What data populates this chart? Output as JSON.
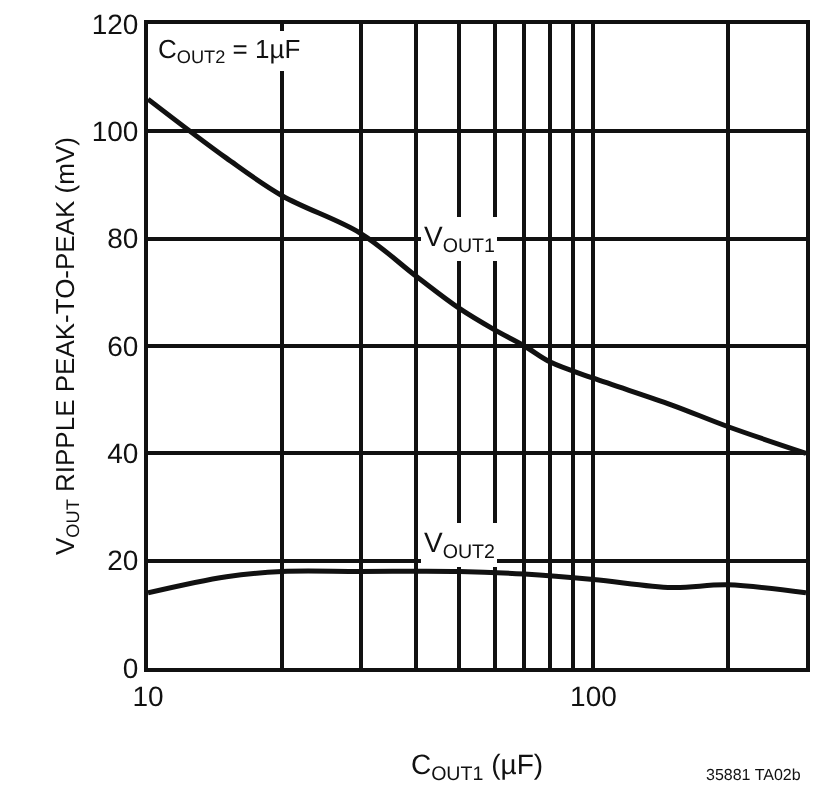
{
  "chart_data": {
    "type": "line",
    "xlabel": "C$_{OUT1}$ (µF)",
    "ylabel": "V$_{OUT}$ RIPPLE PEAK-TO-PEAK (mV)",
    "log": "x",
    "grid": true,
    "legend": false,
    "line_style": "solid",
    "marker": "none",
    "xlim": [
      10,
      300
    ],
    "xticks": [
      10,
      {
        "value": 20,
        "label": null
      },
      {
        "value": 30,
        "label": null
      },
      {
        "value": 40,
        "label": null
      },
      {
        "value": 50,
        "label": null
      },
      {
        "value": 60,
        "label": null
      },
      {
        "value": 70,
        "label": null
      },
      {
        "value": 80,
        "label": null
      },
      {
        "value": 90,
        "label": null
      },
      100,
      {
        "value": 200,
        "label": null
      }
    ],
    "ylim": [
      0,
      120
    ],
    "yticks": [
      0,
      20,
      40,
      60,
      80,
      100,
      120
    ],
    "series": [
      {
        "color": "#111111",
        "x": [
          10,
          15,
          20,
          30,
          40,
          50,
          60,
          70,
          80,
          100,
          150,
          200,
          300
        ],
        "values": [
          106,
          95,
          88,
          81,
          73,
          67,
          63,
          60,
          57,
          54,
          49,
          45,
          40
        ]
      },
      {
        "color": "#111111",
        "x": [
          10,
          15,
          20,
          30,
          50,
          70,
          100,
          150,
          200,
          300
        ],
        "values": [
          14,
          17,
          18,
          18,
          18,
          17.5,
          16.5,
          15,
          15.5,
          14
        ]
      }
    ],
    "annotations": [
      {
        "text": "V$_{OUT1}$",
        "x": 50,
        "y": 80
      },
      {
        "text": "V$_{OUT2}$",
        "x": 50,
        "y": 23
      },
      "C$_{OUT2}$ = 1µF",
      "35881 TA02b"
    ]
  }
}
